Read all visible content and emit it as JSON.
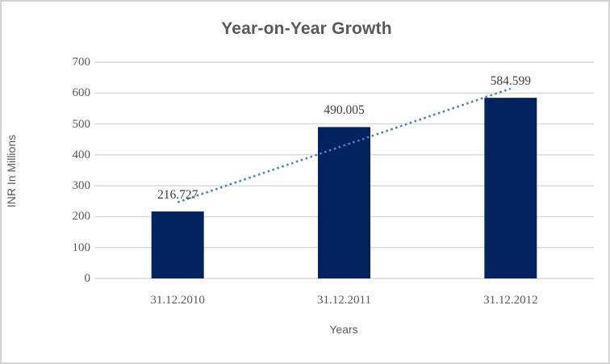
{
  "chart_data": {
    "type": "bar",
    "title": "Year-on-Year Growth",
    "xlabel": "Years",
    "ylabel": "INR In Millions",
    "categories": [
      "31.12.2010",
      "31.12.2011",
      "31.12.2012"
    ],
    "values": [
      216.727,
      490.005,
      584.599
    ],
    "data_labels": [
      "216.727",
      "490.005",
      "584.599"
    ],
    "ylim": [
      0,
      700
    ],
    "yticks": [
      0,
      100,
      200,
      300,
      400,
      500,
      600,
      700
    ],
    "grid": true,
    "legend": "none",
    "trendline": {
      "type": "linear",
      "style": "dotted",
      "color": "#4F81BD"
    },
    "colors": {
      "bar": "#02235E",
      "gridline": "#D9D9D9",
      "axis_text": "#595959",
      "data_label_text": "#3F3F3F",
      "title_text": "#595959",
      "border": "#D3D3D3",
      "background": "#FFFFFF"
    }
  }
}
